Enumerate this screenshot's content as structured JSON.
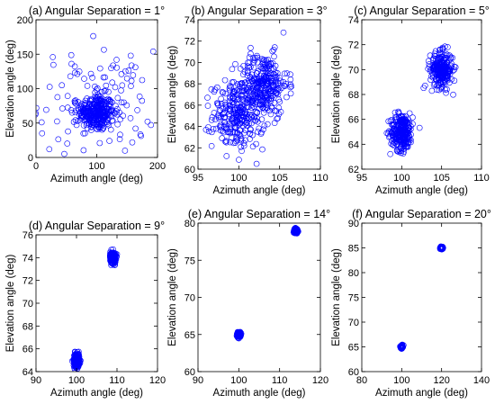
{
  "colors": {
    "marker": "#0000ff",
    "axis": "#000000",
    "background": "#ffffff"
  },
  "chart_data": [
    {
      "type": "scatter",
      "title": "(a) Angular Separation = 1°",
      "xlabel": "Azimuth angle (deg)",
      "ylabel": "Elevation angle (deg)",
      "xlim": [
        0,
        200
      ],
      "ylim": [
        0,
        200
      ],
      "xticks": [
        0,
        100,
        200
      ],
      "yticks": [
        0,
        50,
        100,
        150,
        200
      ],
      "grid": false,
      "marker": "open-circle",
      "clusters": [
        {
          "center": [
            100,
            65
          ],
          "spread": [
            14,
            13
          ],
          "count": 300
        },
        {
          "center": [
            100,
            80
          ],
          "spread": [
            48,
            38
          ],
          "count": 130
        }
      ]
    },
    {
      "type": "scatter",
      "title": "(b) Angular Separation = 3°",
      "xlabel": "Azimuth angle (deg)",
      "ylabel": "Elevation angle (deg)",
      "xlim": [
        95,
        110
      ],
      "ylim": [
        60,
        74
      ],
      "xticks": [
        95,
        100,
        105,
        110
      ],
      "yticks": [
        60,
        62,
        64,
        66,
        68,
        70,
        72,
        74
      ],
      "grid": false,
      "marker": "open-circle",
      "clusters": [
        {
          "center": [
            100,
            65
          ],
          "spread": [
            1.6,
            1.5
          ],
          "count": 280
        },
        {
          "center": [
            103,
            68
          ],
          "spread": [
            1.5,
            1.4
          ],
          "count": 280
        }
      ]
    },
    {
      "type": "scatter",
      "title": "(c) Angular Separation = 5°",
      "xlabel": "Azimuth angle (deg)",
      "ylabel": "Elevation angle (deg)",
      "xlim": [
        95,
        110
      ],
      "ylim": [
        62,
        74
      ],
      "xticks": [
        95,
        100,
        105,
        110
      ],
      "yticks": [
        62,
        64,
        66,
        68,
        70,
        72,
        74
      ],
      "grid": false,
      "marker": "open-circle",
      "clusters": [
        {
          "center": [
            100,
            65
          ],
          "spread": [
            0.7,
            0.75
          ],
          "count": 260
        },
        {
          "center": [
            105,
            70
          ],
          "spread": [
            0.7,
            0.7
          ],
          "count": 260
        }
      ]
    },
    {
      "type": "scatter",
      "title": "(d) Angular Separation = 9°",
      "xlabel": "Azimuth angle (deg)",
      "ylabel": "Elevation angle (deg)",
      "xlim": [
        90,
        120
      ],
      "ylim": [
        64,
        76
      ],
      "xticks": [
        90,
        100,
        110,
        120
      ],
      "yticks": [
        64,
        66,
        68,
        70,
        72,
        74,
        76
      ],
      "grid": false,
      "marker": "open-circle",
      "clusters": [
        {
          "center": [
            100,
            65
          ],
          "spread": [
            0.35,
            0.3
          ],
          "count": 220
        },
        {
          "center": [
            109,
            74
          ],
          "spread": [
            0.35,
            0.25
          ],
          "count": 220
        }
      ]
    },
    {
      "type": "scatter",
      "title": "(e) Angular Separation = 14°",
      "xlabel": "Azimuth angle (deg)",
      "ylabel": "Elevation angle (deg)",
      "xlim": [
        90,
        120
      ],
      "ylim": [
        60,
        80
      ],
      "xticks": [
        90,
        100,
        110,
        120
      ],
      "yticks": [
        60,
        65,
        70,
        75,
        80
      ],
      "grid": false,
      "marker": "open-circle",
      "clusters": [
        {
          "center": [
            100,
            65
          ],
          "spread": [
            0.22,
            0.18
          ],
          "count": 160
        },
        {
          "center": [
            114,
            79
          ],
          "spread": [
            0.22,
            0.15
          ],
          "count": 160
        }
      ]
    },
    {
      "type": "scatter",
      "title": "(f) Angular Separation = 20°",
      "xlabel": "Azimuth angle (deg)",
      "ylabel": "Elevation angle (deg)",
      "xlim": [
        80,
        140
      ],
      "ylim": [
        60,
        90
      ],
      "xticks": [
        80,
        100,
        120,
        140
      ],
      "yticks": [
        60,
        65,
        70,
        75,
        80,
        85,
        90
      ],
      "grid": false,
      "marker": "open-circle",
      "clusters": [
        {
          "center": [
            100,
            65
          ],
          "spread": [
            0.25,
            0.15
          ],
          "count": 120
        },
        {
          "center": [
            120,
            85
          ],
          "spread": [
            0.25,
            0.12
          ],
          "count": 120
        }
      ]
    }
  ]
}
